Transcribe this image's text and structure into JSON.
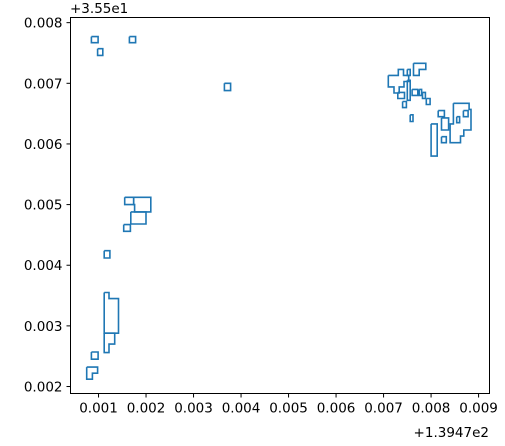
{
  "chart_data": {
    "type": "line",
    "title": "",
    "xlabel": "",
    "ylabel": "",
    "x_offset_text": "+1.3947e2",
    "y_offset_text": "+3.55e1",
    "xlim": [
      0.00041,
      0.00923
    ],
    "ylim": [
      0.001885,
      0.008085
    ],
    "grid": false,
    "legend": "none",
    "line_color": "#1f77b4",
    "x_ticks": [
      {
        "value": 0.001,
        "label": "0.001"
      },
      {
        "value": 0.002,
        "label": "0.002"
      },
      {
        "value": 0.003,
        "label": "0.003"
      },
      {
        "value": 0.004,
        "label": "0.004"
      },
      {
        "value": 0.005,
        "label": "0.005"
      },
      {
        "value": 0.006,
        "label": "0.006"
      },
      {
        "value": 0.007,
        "label": "0.007"
      },
      {
        "value": 0.008,
        "label": "0.008"
      },
      {
        "value": 0.009,
        "label": "0.009"
      }
    ],
    "y_ticks": [
      {
        "value": 0.002,
        "label": "0.002"
      },
      {
        "value": 0.003,
        "label": "0.003"
      },
      {
        "value": 0.004,
        "label": "0.004"
      },
      {
        "value": 0.005,
        "label": "0.005"
      },
      {
        "value": 0.006,
        "label": "0.006"
      },
      {
        "value": 0.007,
        "label": "0.007"
      },
      {
        "value": 0.008,
        "label": "0.008"
      }
    ],
    "contours": [
      [
        [
          0.00085,
          0.00777
        ],
        [
          0.00099,
          0.00777
        ],
        [
          0.00099,
          0.00767
        ],
        [
          0.00085,
          0.00767
        ],
        [
          0.00085,
          0.00777
        ]
      ],
      [
        [
          0.00165,
          0.00777
        ],
        [
          0.00178,
          0.00777
        ],
        [
          0.00178,
          0.00767
        ],
        [
          0.00165,
          0.00767
        ],
        [
          0.00165,
          0.00777
        ]
      ],
      [
        [
          0.00098,
          0.00757
        ],
        [
          0.00109,
          0.00757
        ],
        [
          0.00109,
          0.00746
        ],
        [
          0.00098,
          0.00746
        ],
        [
          0.00098,
          0.00757
        ]
      ],
      [
        [
          0.00365,
          0.007
        ],
        [
          0.00378,
          0.007
        ],
        [
          0.00378,
          0.00688
        ],
        [
          0.00365,
          0.00688
        ],
        [
          0.00365,
          0.007
        ]
      ],
      [
        [
          0.0071,
          0.00713
        ],
        [
          0.00731,
          0.00713
        ],
        [
          0.00731,
          0.00723
        ],
        [
          0.00742,
          0.00723
        ],
        [
          0.00742,
          0.00713
        ],
        [
          0.00753,
          0.00713
        ],
        [
          0.00753,
          0.00703
        ],
        [
          0.00743,
          0.00703
        ],
        [
          0.00743,
          0.00694
        ],
        [
          0.00733,
          0.00694
        ],
        [
          0.00733,
          0.00684
        ],
        [
          0.00722,
          0.00684
        ],
        [
          0.00722,
          0.00694
        ],
        [
          0.0071,
          0.00694
        ],
        [
          0.0071,
          0.00713
        ]
      ],
      [
        [
          0.0075,
          0.00723
        ],
        [
          0.00756,
          0.00723
        ],
        [
          0.00756,
          0.00713
        ],
        [
          0.0075,
          0.00713
        ],
        [
          0.0075,
          0.00723
        ]
      ],
      [
        [
          0.00763,
          0.00733
        ],
        [
          0.00789,
          0.00733
        ],
        [
          0.00789,
          0.00723
        ],
        [
          0.00775,
          0.00723
        ],
        [
          0.00775,
          0.00713
        ],
        [
          0.00763,
          0.00713
        ],
        [
          0.00763,
          0.00733
        ]
      ],
      [
        [
          0.0073,
          0.00685
        ],
        [
          0.00744,
          0.00685
        ],
        [
          0.00744,
          0.00675
        ],
        [
          0.0073,
          0.00675
        ],
        [
          0.0073,
          0.00685
        ]
      ],
      [
        [
          0.0075,
          0.00705
        ],
        [
          0.00756,
          0.00705
        ],
        [
          0.00756,
          0.00672
        ],
        [
          0.0075,
          0.00672
        ],
        [
          0.0075,
          0.00705
        ]
      ],
      [
        [
          0.0076,
          0.0069
        ],
        [
          0.00772,
          0.0069
        ],
        [
          0.00772,
          0.0068
        ],
        [
          0.0076,
          0.0068
        ],
        [
          0.0076,
          0.0069
        ]
      ],
      [
        [
          0.00775,
          0.0069
        ],
        [
          0.0078,
          0.0069
        ],
        [
          0.0078,
          0.0068
        ],
        [
          0.00775,
          0.0068
        ],
        [
          0.00775,
          0.0069
        ]
      ],
      [
        [
          0.00782,
          0.00685
        ],
        [
          0.00788,
          0.00685
        ],
        [
          0.00788,
          0.00675
        ],
        [
          0.00782,
          0.00675
        ],
        [
          0.00782,
          0.00685
        ]
      ],
      [
        [
          0.0079,
          0.00675
        ],
        [
          0.00798,
          0.00675
        ],
        [
          0.00798,
          0.00665
        ],
        [
          0.0079,
          0.00665
        ],
        [
          0.0079,
          0.00675
        ]
      ],
      [
        [
          0.0074,
          0.0067
        ],
        [
          0.00748,
          0.0067
        ],
        [
          0.00748,
          0.0066
        ],
        [
          0.0074,
          0.0066
        ],
        [
          0.0074,
          0.0067
        ]
      ],
      [
        [
          0.00756,
          0.00648
        ],
        [
          0.00762,
          0.00648
        ],
        [
          0.00762,
          0.00637
        ],
        [
          0.00756,
          0.00637
        ],
        [
          0.00756,
          0.00648
        ]
      ],
      [
        [
          0.008,
          0.00633
        ],
        [
          0.00813,
          0.00633
        ],
        [
          0.00813,
          0.0058
        ],
        [
          0.008,
          0.0058
        ],
        [
          0.008,
          0.00633
        ]
      ],
      [
        [
          0.00815,
          0.00655
        ],
        [
          0.00828,
          0.00655
        ],
        [
          0.00828,
          0.00645
        ],
        [
          0.00815,
          0.00645
        ],
        [
          0.00815,
          0.00655
        ]
      ],
      [
        [
          0.00822,
          0.00643
        ],
        [
          0.00837,
          0.00643
        ],
        [
          0.00837,
          0.00623
        ],
        [
          0.00822,
          0.00623
        ],
        [
          0.00822,
          0.00643
        ]
      ],
      [
        [
          0.00822,
          0.00612
        ],
        [
          0.00832,
          0.00612
        ],
        [
          0.00832,
          0.00602
        ],
        [
          0.00822,
          0.00602
        ],
        [
          0.00822,
          0.00612
        ]
      ],
      [
        [
          0.00847,
          0.00667
        ],
        [
          0.0088,
          0.00667
        ],
        [
          0.0088,
          0.00657
        ],
        [
          0.00884,
          0.00657
        ],
        [
          0.00884,
          0.00623
        ],
        [
          0.00869,
          0.00623
        ],
        [
          0.00869,
          0.00613
        ],
        [
          0.00862,
          0.00613
        ],
        [
          0.00862,
          0.00602
        ],
        [
          0.0084,
          0.00602
        ],
        [
          0.0084,
          0.00633
        ],
        [
          0.00847,
          0.00633
        ],
        [
          0.00847,
          0.00667
        ]
      ],
      [
        [
          0.00854,
          0.00645
        ],
        [
          0.0086,
          0.00645
        ],
        [
          0.0086,
          0.00635
        ],
        [
          0.00854,
          0.00635
        ],
        [
          0.00854,
          0.00645
        ]
      ],
      [
        [
          0.00868,
          0.00655
        ],
        [
          0.00878,
          0.00655
        ],
        [
          0.00878,
          0.00645
        ],
        [
          0.00868,
          0.00645
        ],
        [
          0.00868,
          0.00655
        ]
      ],
      [
        [
          0.00155,
          0.00512
        ],
        [
          0.00174,
          0.00512
        ],
        [
          0.00174,
          0.005
        ],
        [
          0.00155,
          0.005
        ],
        [
          0.00155,
          0.00512
        ]
      ],
      [
        [
          0.00174,
          0.00512
        ],
        [
          0.0021,
          0.00512
        ],
        [
          0.0021,
          0.00488
        ],
        [
          0.00176,
          0.00488
        ],
        [
          0.00176,
          0.005
        ],
        [
          0.00174,
          0.005
        ],
        [
          0.00174,
          0.00512
        ]
      ],
      [
        [
          0.00168,
          0.00488
        ],
        [
          0.002,
          0.00488
        ],
        [
          0.002,
          0.00468
        ],
        [
          0.00168,
          0.00468
        ],
        [
          0.00168,
          0.00488
        ]
      ],
      [
        [
          0.00153,
          0.00467
        ],
        [
          0.00167,
          0.00467
        ],
        [
          0.00167,
          0.00456
        ],
        [
          0.00153,
          0.00456
        ],
        [
          0.00153,
          0.00467
        ]
      ],
      [
        [
          0.00112,
          0.00424
        ],
        [
          0.00124,
          0.00424
        ],
        [
          0.00124,
          0.00412
        ],
        [
          0.00112,
          0.00412
        ],
        [
          0.00112,
          0.00424
        ]
      ],
      [
        [
          0.00112,
          0.00355
        ],
        [
          0.00122,
          0.00355
        ],
        [
          0.00122,
          0.00345
        ],
        [
          0.00142,
          0.00345
        ],
        [
          0.00142,
          0.00288
        ],
        [
          0.00112,
          0.00288
        ],
        [
          0.00112,
          0.00355
        ]
      ],
      [
        [
          0.00112,
          0.00288
        ],
        [
          0.00134,
          0.00288
        ],
        [
          0.00134,
          0.0027
        ],
        [
          0.00122,
          0.0027
        ],
        [
          0.00122,
          0.00256
        ],
        [
          0.00112,
          0.00256
        ],
        [
          0.00112,
          0.00288
        ]
      ],
      [
        [
          0.00085,
          0.00257
        ],
        [
          0.00099,
          0.00257
        ],
        [
          0.00099,
          0.00245
        ],
        [
          0.00085,
          0.00245
        ],
        [
          0.00085,
          0.00257
        ]
      ],
      [
        [
          0.00075,
          0.00232
        ],
        [
          0.00098,
          0.00232
        ],
        [
          0.00098,
          0.00222
        ],
        [
          0.00087,
          0.00222
        ],
        [
          0.00087,
          0.00212
        ],
        [
          0.00075,
          0.00212
        ],
        [
          0.00075,
          0.00232
        ]
      ]
    ]
  }
}
